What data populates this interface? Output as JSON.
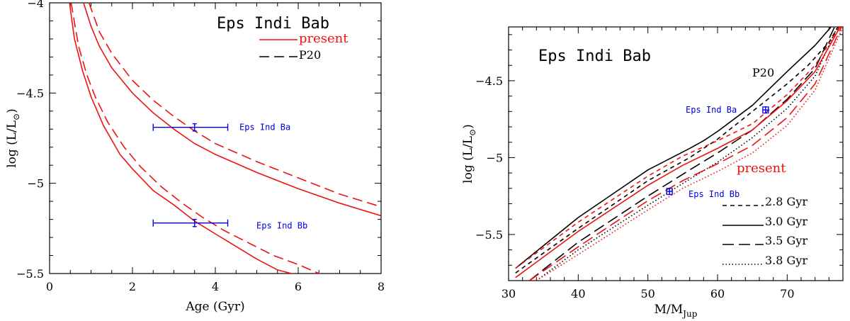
{
  "colors": {
    "red": "#ee1111",
    "black": "#000000",
    "blue": "#0000dd"
  },
  "chart_data": [
    {
      "type": "line",
      "title": "Eps Indi Bab",
      "xlabel": "Age (Gyr)",
      "ylabel": "log (L/L",
      "ylabel_sub": "⊙",
      "ylabel_close": ")",
      "xlim": [
        0,
        8
      ],
      "ylim": [
        -5.5,
        -4
      ],
      "xticks": [
        0,
        2,
        4,
        6,
        8
      ],
      "xtick_labels": [
        "0",
        "2",
        "4",
        "6",
        "8"
      ],
      "yticks": [
        -5.5,
        -5,
        -4.5,
        -4
      ],
      "ytick_labels": [
        "−5.5",
        "−5",
        "−4.5",
        "−4"
      ],
      "legend": [
        {
          "label": "present",
          "style": "solid",
          "color": "#ee1111",
          "text_color": "#ee1111"
        },
        {
          "label": "P20",
          "style": "dashed",
          "color": "#000000",
          "text_color": "#000000"
        }
      ],
      "series": [
        {
          "name": "present (upper)",
          "style": "solid",
          "color": "#ee1111",
          "x": [
            0.82,
            1.0,
            1.2,
            1.5,
            2.0,
            2.5,
            3.0,
            3.5,
            4.0,
            5.0,
            6.0,
            7.0,
            8.0
          ],
          "y": [
            -4.0,
            -4.13,
            -4.24,
            -4.36,
            -4.5,
            -4.61,
            -4.7,
            -4.78,
            -4.84,
            -4.94,
            -5.03,
            -5.11,
            -5.18
          ]
        },
        {
          "name": "P20 (upper)",
          "style": "dashed",
          "color": "#ee1111",
          "x": [
            0.95,
            1.2,
            1.5,
            2.0,
            2.5,
            3.0,
            3.5,
            4.0,
            5.0,
            6.0,
            7.0,
            8.0
          ],
          "y": [
            -4.0,
            -4.16,
            -4.28,
            -4.43,
            -4.54,
            -4.63,
            -4.71,
            -4.78,
            -4.88,
            -4.97,
            -5.06,
            -5.13
          ]
        },
        {
          "name": "present (lower)",
          "style": "solid",
          "color": "#ee1111",
          "x": [
            0.48,
            0.6,
            0.8,
            1.0,
            1.3,
            1.7,
            2.0,
            2.5,
            3.0,
            3.5,
            4.0,
            4.5,
            5.0,
            5.5,
            6.0
          ],
          "y": [
            -4.0,
            -4.2,
            -4.38,
            -4.52,
            -4.68,
            -4.84,
            -4.92,
            -5.04,
            -5.12,
            -5.21,
            -5.28,
            -5.35,
            -5.42,
            -5.48,
            -5.51
          ]
        },
        {
          "name": "P20 (lower)",
          "style": "dashed",
          "color": "#ee1111",
          "x": [
            0.52,
            0.7,
            0.9,
            1.1,
            1.4,
            1.8,
            2.2,
            2.7,
            3.2,
            3.7,
            4.2,
            4.8,
            5.4,
            6.0,
            6.6
          ],
          "y": [
            -4.0,
            -4.24,
            -4.4,
            -4.52,
            -4.66,
            -4.8,
            -4.91,
            -5.02,
            -5.11,
            -5.19,
            -5.26,
            -5.33,
            -5.4,
            -5.45,
            -5.51
          ]
        }
      ],
      "errorbars": [
        {
          "label": "Eps Ind Ba",
          "x": 3.5,
          "xerr": [
            2.5,
            4.3
          ],
          "y": -4.69,
          "yerr": 0.02,
          "color": "#0000dd"
        },
        {
          "label": "Eps Ind Bb",
          "x": 3.5,
          "xerr": [
            2.5,
            4.3
          ],
          "y": -5.22,
          "yerr": 0.02,
          "color": "#0000dd"
        }
      ]
    },
    {
      "type": "line",
      "title": "Eps Indi Bab",
      "xlabel": "M/M",
      "xlabel_sub": "Jup",
      "ylabel": "log (L/L",
      "ylabel_sub": "⊙",
      "ylabel_close": ")",
      "xlim": [
        30,
        78
      ],
      "ylim": [
        -5.8,
        -4.15
      ],
      "xticks": [
        30,
        40,
        50,
        60,
        70
      ],
      "xtick_labels": [
        "30",
        "40",
        "50",
        "60",
        "70"
      ],
      "yticks": [
        -5.5,
        -5,
        -4.5
      ],
      "ytick_labels": [
        "−5.5",
        "−5",
        "−4.5"
      ],
      "model_labels": [
        {
          "text": "P20",
          "color": "#000000"
        },
        {
          "text": "present",
          "color": "#ee1111"
        }
      ],
      "legend": [
        {
          "label": "2.8 Gyr",
          "style": "shortdash",
          "color": "#000000"
        },
        {
          "label": "3.0 Gyr",
          "style": "solid",
          "color": "#000000"
        },
        {
          "label": "3.5 Gyr",
          "style": "longdash",
          "color": "#000000"
        },
        {
          "label": "3.8 Gyr",
          "style": "dotted",
          "color": "#000000"
        }
      ],
      "series": [
        {
          "name": "P20 2.8 Gyr",
          "style": "shortdash",
          "color": "#000000",
          "x": [
            31,
            40,
            50,
            56,
            60,
            65,
            70,
            73,
            76,
            77.3
          ],
          "y": [
            -5.75,
            -5.46,
            -5.15,
            -5.0,
            -4.88,
            -4.7,
            -4.52,
            -4.4,
            -4.25,
            -4.15
          ]
        },
        {
          "name": "P20 3.0 Gyr",
          "style": "solid",
          "color": "#000000",
          "x": [
            31,
            40,
            50,
            56,
            58,
            60,
            65,
            70,
            74,
            76.3
          ],
          "y": [
            -5.72,
            -5.39,
            -5.08,
            -4.94,
            -4.89,
            -4.83,
            -4.66,
            -4.44,
            -4.27,
            -4.15
          ]
        },
        {
          "name": "P20 3.5 Gyr",
          "style": "longdash",
          "color": "#000000",
          "x": [
            33,
            40,
            50,
            56,
            60,
            65,
            70,
            74,
            76.8
          ],
          "y": [
            -5.8,
            -5.55,
            -5.25,
            -5.08,
            -4.97,
            -4.82,
            -4.62,
            -4.42,
            -4.15
          ]
        },
        {
          "name": "P20 3.8 Gyr",
          "style": "dotted",
          "color": "#000000",
          "x": [
            34,
            40,
            50,
            56,
            60,
            65,
            70,
            74,
            77.2
          ],
          "y": [
            -5.8,
            -5.6,
            -5.31,
            -5.14,
            -5.03,
            -4.87,
            -4.68,
            -4.47,
            -4.15
          ]
        },
        {
          "name": "present 2.8 Gyr",
          "style": "shortdash",
          "color": "#ee1111",
          "x": [
            31,
            40,
            50,
            55,
            60,
            65,
            70,
            74,
            77.5
          ],
          "y": [
            -5.72,
            -5.42,
            -5.12,
            -4.99,
            -4.89,
            -4.78,
            -4.59,
            -4.4,
            -4.15
          ]
        },
        {
          "name": "present 3.0 Gyr",
          "style": "solid",
          "color": "#ee1111",
          "x": [
            31,
            40,
            50,
            55,
            60,
            65,
            70,
            74,
            77.6
          ],
          "y": [
            -5.78,
            -5.48,
            -5.18,
            -5.05,
            -4.94,
            -4.82,
            -4.63,
            -4.44,
            -4.15
          ]
        },
        {
          "name": "present 3.5 Gyr",
          "style": "longdash",
          "color": "#ee1111",
          "x": [
            33,
            40,
            50,
            55,
            60,
            65,
            70,
            74,
            77.8
          ],
          "y": [
            -5.8,
            -5.58,
            -5.28,
            -5.15,
            -5.04,
            -4.92,
            -4.74,
            -4.52,
            -4.15
          ]
        },
        {
          "name": "present 3.8 Gyr",
          "style": "dotted",
          "color": "#ee1111",
          "x": [
            34,
            40,
            50,
            55,
            60,
            65,
            70,
            74,
            78
          ],
          "y": [
            -5.8,
            -5.63,
            -5.34,
            -5.2,
            -5.09,
            -4.97,
            -4.79,
            -4.56,
            -4.15
          ]
        }
      ],
      "errorbars": [
        {
          "label": "Eps Ind Ba",
          "x": 66.9,
          "xerr": [
            66.5,
            67.3
          ],
          "y": -4.69,
          "yerr": 0.02,
          "color": "#0000dd"
        },
        {
          "label": "Eps Ind Bb",
          "x": 53.1,
          "xerr": [
            52.7,
            53.5
          ],
          "y": -5.22,
          "yerr": 0.02,
          "color": "#0000dd"
        }
      ]
    }
  ]
}
